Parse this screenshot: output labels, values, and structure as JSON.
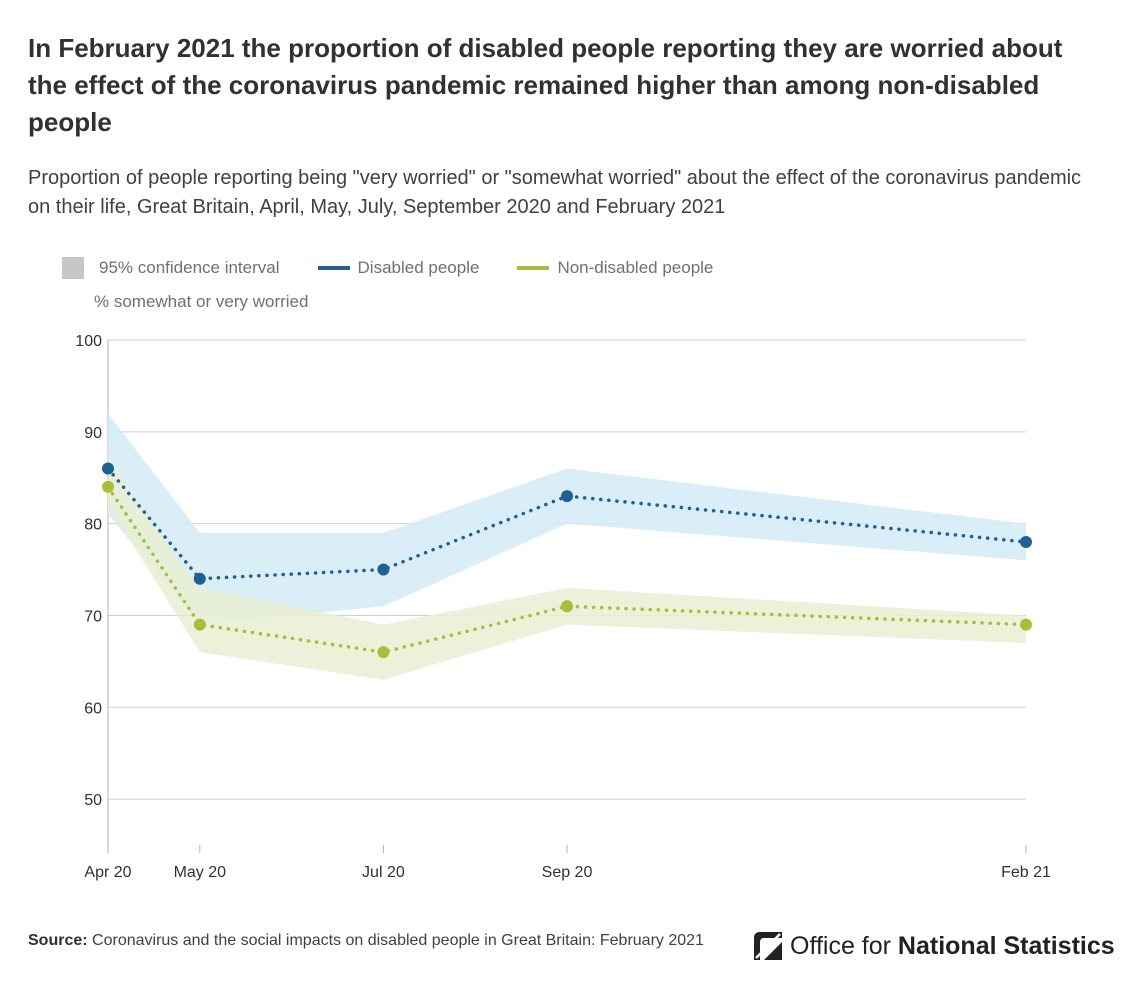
{
  "title": "In February 2021 the proportion of disabled people reporting they are worried about the effect of the coronavirus pandemic remained higher than among non-disabled people",
  "subtitle": "Proportion of people reporting being \"very worried\" or \"somewhat worried\" about the effect of the coronavirus pandemic on their life, Great Britain, April, May, July, September 2020 and February 2021",
  "legend": {
    "ci": "95% confidence interval",
    "disabled": "Disabled people",
    "non_disabled": "Non-disabled people"
  },
  "ylabel": "% somewhat or very worried",
  "source": {
    "label": "Source:",
    "text": "Coronavirus and the social impacts on disabled people in Great Britain: February 2021"
  },
  "logo": {
    "text_regular": "Office for ",
    "text_bold": "National Statistics"
  },
  "colors": {
    "disabled": "#206095",
    "disabled_ci": "#d4ebf6",
    "non_disabled": "#a8bd3a",
    "non_disabled_ci": "#e9eed2",
    "ci_legend": "#c6c6c6",
    "grid": "#d0d0d0"
  },
  "chart_data": {
    "type": "line",
    "categories": [
      "Apr 20",
      "May 20",
      "Jul 20",
      "Sep 20",
      "Feb 21"
    ],
    "x_months": [
      0,
      1,
      3,
      5,
      10
    ],
    "ylim": [
      45,
      100
    ],
    "yticks": [
      50,
      60,
      70,
      80,
      90,
      100
    ],
    "grid": true,
    "legend_position": "top-left",
    "series": [
      {
        "name": "Disabled people",
        "values": [
          86,
          74,
          75,
          83,
          78
        ],
        "ci_lower": [
          81,
          69,
          71,
          80,
          76
        ],
        "ci_upper": [
          92,
          79,
          79,
          86,
          80
        ],
        "color": "#206095",
        "ci_color": "#d4ebf6",
        "line_style": "dotted"
      },
      {
        "name": "Non-disabled people",
        "values": [
          84,
          69,
          66,
          71,
          69
        ],
        "ci_lower": [
          82,
          66,
          63,
          69,
          67
        ],
        "ci_upper": [
          87,
          73,
          69,
          73,
          70
        ],
        "color": "#a8bd3a",
        "ci_color": "#e9eed2",
        "line_style": "dotted"
      }
    ]
  }
}
